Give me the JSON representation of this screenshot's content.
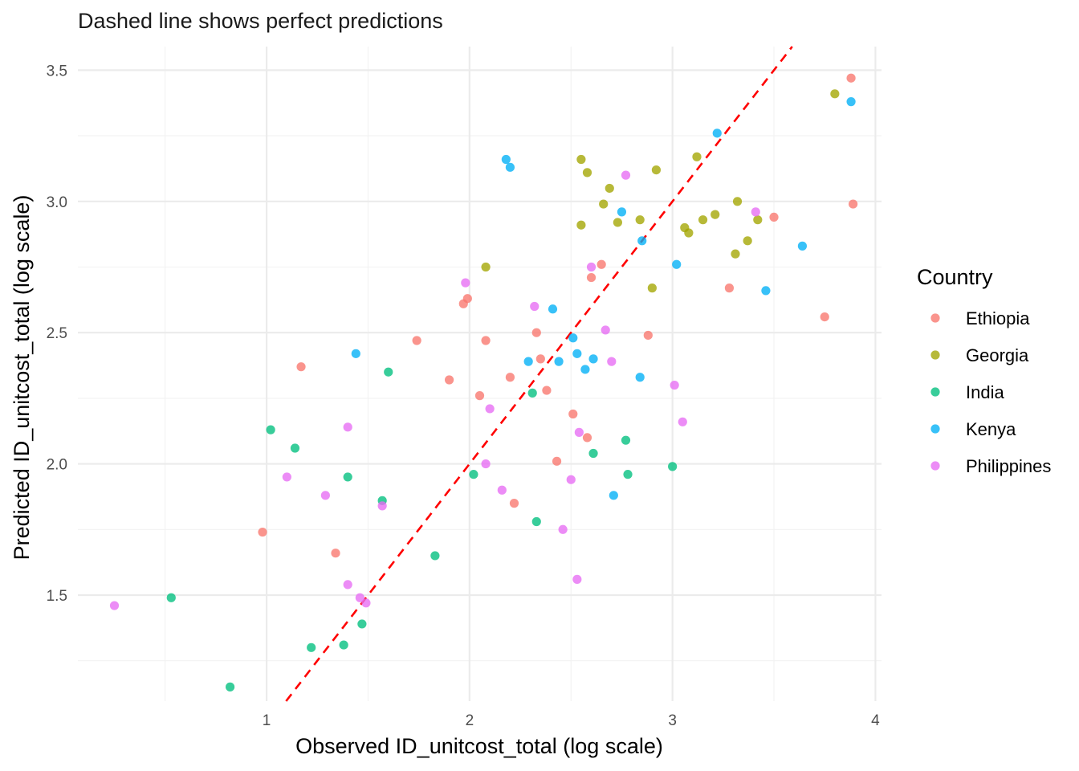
{
  "chart_data": {
    "type": "scatter",
    "title": "",
    "subtitle": "Dashed line shows perfect predictions",
    "xlabel": "Observed ID_unitcost_total (log scale)",
    "ylabel": "Predicted ID_unitcost_total (log scale)",
    "xlim": [
      0.0,
      4.0
    ],
    "ylim": [
      1.1,
      3.6
    ],
    "x_ticks": [
      1,
      2,
      3,
      4
    ],
    "y_ticks": [
      1.5,
      2.0,
      2.5,
      3.0,
      3.5
    ],
    "x_tick_labels": [
      "1",
      "2",
      "3",
      "4"
    ],
    "y_tick_labels": [
      "1.5",
      "2.0",
      "2.5",
      "3.0",
      "3.5"
    ],
    "grid": true,
    "reference_line": {
      "type": "identity",
      "style": "dashed",
      "color": "#ff0000"
    },
    "legend": {
      "title": "Country",
      "position": "right"
    },
    "series": [
      {
        "name": "Ethiopia",
        "color": "#F8766D",
        "points": [
          [
            0.98,
            1.74
          ],
          [
            1.17,
            2.37
          ],
          [
            1.34,
            1.66
          ],
          [
            1.74,
            2.47
          ],
          [
            1.9,
            2.32
          ],
          [
            1.97,
            2.61
          ],
          [
            1.99,
            2.63
          ],
          [
            2.05,
            2.26
          ],
          [
            2.08,
            2.47
          ],
          [
            2.2,
            2.33
          ],
          [
            2.22,
            1.85
          ],
          [
            2.33,
            2.5
          ],
          [
            2.35,
            2.4
          ],
          [
            2.38,
            2.28
          ],
          [
            2.43,
            2.01
          ],
          [
            2.51,
            2.19
          ],
          [
            2.58,
            2.1
          ],
          [
            2.6,
            2.71
          ],
          [
            2.65,
            2.76
          ],
          [
            2.88,
            2.49
          ],
          [
            3.28,
            2.67
          ],
          [
            3.5,
            2.94
          ],
          [
            3.75,
            2.56
          ],
          [
            3.88,
            3.47
          ],
          [
            3.89,
            2.99
          ]
        ]
      },
      {
        "name": "Georgia",
        "color": "#A3A500",
        "points": [
          [
            2.08,
            2.75
          ],
          [
            2.55,
            3.16
          ],
          [
            2.55,
            2.91
          ],
          [
            2.58,
            3.11
          ],
          [
            2.66,
            2.99
          ],
          [
            2.69,
            3.05
          ],
          [
            2.73,
            2.92
          ],
          [
            2.84,
            2.93
          ],
          [
            2.9,
            2.67
          ],
          [
            2.92,
            3.12
          ],
          [
            3.06,
            2.9
          ],
          [
            3.08,
            2.88
          ],
          [
            3.12,
            3.17
          ],
          [
            3.15,
            2.93
          ],
          [
            3.21,
            2.95
          ],
          [
            3.31,
            2.8
          ],
          [
            3.32,
            3.0
          ],
          [
            3.37,
            2.85
          ],
          [
            3.42,
            2.93
          ],
          [
            3.8,
            3.41
          ]
        ]
      },
      {
        "name": "India",
        "color": "#00BF7D",
        "points": [
          [
            0.53,
            1.49
          ],
          [
            0.82,
            1.15
          ],
          [
            1.02,
            2.13
          ],
          [
            1.14,
            2.06
          ],
          [
            1.22,
            1.3
          ],
          [
            1.38,
            1.31
          ],
          [
            1.4,
            1.95
          ],
          [
            1.47,
            1.39
          ],
          [
            1.57,
            1.86
          ],
          [
            1.6,
            2.35
          ],
          [
            1.83,
            1.65
          ],
          [
            2.02,
            1.96
          ],
          [
            2.31,
            2.27
          ],
          [
            2.33,
            1.78
          ],
          [
            2.61,
            2.04
          ],
          [
            2.77,
            2.09
          ],
          [
            2.78,
            1.96
          ],
          [
            3.0,
            1.99
          ]
        ]
      },
      {
        "name": "Kenya",
        "color": "#00B0F6",
        "points": [
          [
            1.44,
            2.42
          ],
          [
            2.18,
            3.16
          ],
          [
            2.2,
            3.13
          ],
          [
            2.29,
            2.39
          ],
          [
            2.41,
            2.59
          ],
          [
            2.44,
            2.39
          ],
          [
            2.51,
            2.48
          ],
          [
            2.53,
            2.42
          ],
          [
            2.57,
            2.36
          ],
          [
            2.61,
            2.4
          ],
          [
            2.71,
            1.88
          ],
          [
            2.75,
            2.96
          ],
          [
            2.84,
            2.33
          ],
          [
            2.85,
            2.85
          ],
          [
            3.02,
            2.76
          ],
          [
            3.22,
            3.26
          ],
          [
            3.46,
            2.66
          ],
          [
            3.64,
            2.83
          ],
          [
            3.88,
            3.38
          ]
        ]
      },
      {
        "name": "Philippines",
        "color": "#E76BF3",
        "points": [
          [
            0.25,
            1.46
          ],
          [
            1.1,
            1.95
          ],
          [
            1.29,
            1.88
          ],
          [
            1.4,
            2.14
          ],
          [
            1.4,
            1.54
          ],
          [
            1.46,
            1.49
          ],
          [
            1.49,
            1.47
          ],
          [
            1.57,
            1.84
          ],
          [
            1.98,
            2.69
          ],
          [
            2.08,
            2.0
          ],
          [
            2.1,
            2.21
          ],
          [
            2.16,
            1.9
          ],
          [
            2.32,
            2.6
          ],
          [
            2.46,
            1.75
          ],
          [
            2.5,
            1.94
          ],
          [
            2.53,
            1.56
          ],
          [
            2.54,
            2.12
          ],
          [
            2.6,
            2.75
          ],
          [
            2.67,
            2.51
          ],
          [
            2.7,
            2.39
          ],
          [
            2.77,
            3.1
          ],
          [
            3.01,
            2.3
          ],
          [
            3.05,
            2.16
          ],
          [
            3.41,
            2.96
          ]
        ]
      }
    ]
  }
}
